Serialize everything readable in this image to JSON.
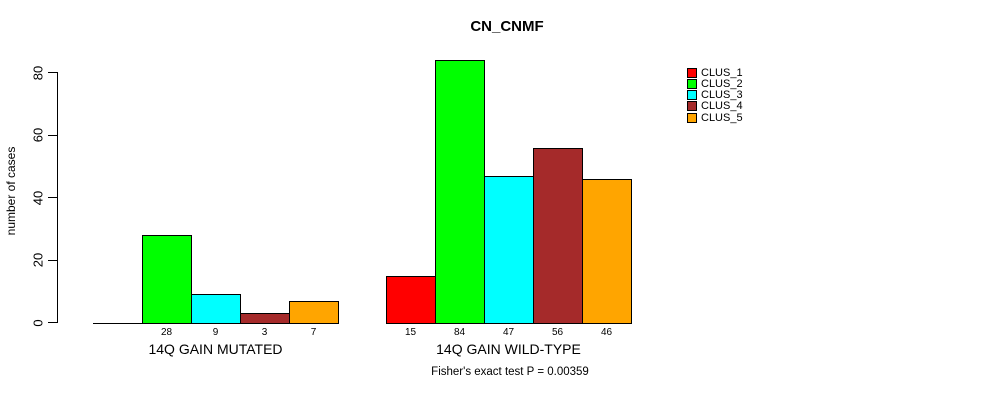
{
  "chart_data": {
    "type": "bar",
    "title": "CN_CNMF",
    "ylabel": "number of cases",
    "xlabel": "",
    "ylim": [
      0,
      80
    ],
    "yticks": [
      0,
      20,
      40,
      60,
      80
    ],
    "grid": false,
    "categories": [
      "14Q GAIN MUTATED",
      "14Q GAIN WILD-TYPE"
    ],
    "series": [
      {
        "name": "CLUS_1",
        "color": "#FF0000",
        "values": [
          0,
          15
        ]
      },
      {
        "name": "CLUS_2",
        "color": "#00FF00",
        "values": [
          28,
          84
        ]
      },
      {
        "name": "CLUS_3",
        "color": "#00FFFF",
        "values": [
          9,
          47
        ]
      },
      {
        "name": "CLUS_4",
        "color": "#A52A2A",
        "values": [
          3,
          56
        ]
      },
      {
        "name": "CLUS_5",
        "color": "#FFA500",
        "values": [
          7,
          46
        ]
      }
    ],
    "bar_value_labels_shown": true,
    "zero_value_labels_hidden": true,
    "legend": {
      "position": "top-right",
      "entries": [
        "CLUS_1",
        "CLUS_2",
        "CLUS_3",
        "CLUS_4",
        "CLUS_5"
      ]
    },
    "annotation": "Fisher's exact test P = 0.00359"
  }
}
